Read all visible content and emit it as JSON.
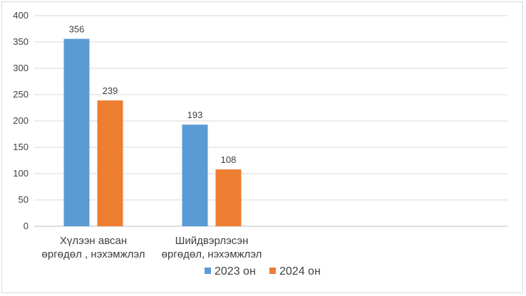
{
  "chart_data": {
    "type": "bar",
    "categories": [
      [
        "Хүлээн авсан",
        "өргөдөл , нэхэмжлэл"
      ],
      [
        "Шийдвэрлэсэн",
        "өргөдөл, нэхэмжлэл"
      ],
      [
        "",
        ""
      ],
      [
        "",
        ""
      ]
    ],
    "series": [
      {
        "name": "2023 он",
        "values": [
          356,
          193,
          null,
          null
        ],
        "color": "#5b9bd5"
      },
      {
        "name": "2024 он",
        "values": [
          239,
          108,
          null,
          null
        ],
        "color": "#ed7d31"
      }
    ],
    "title": "",
    "xlabel": "",
    "ylabel": "",
    "ylim": [
      0,
      400
    ],
    "yticks": [
      "0",
      "50",
      "100",
      "150",
      "200",
      "250",
      "300",
      "350",
      "400"
    ],
    "grid": true,
    "legend": "bottom"
  }
}
